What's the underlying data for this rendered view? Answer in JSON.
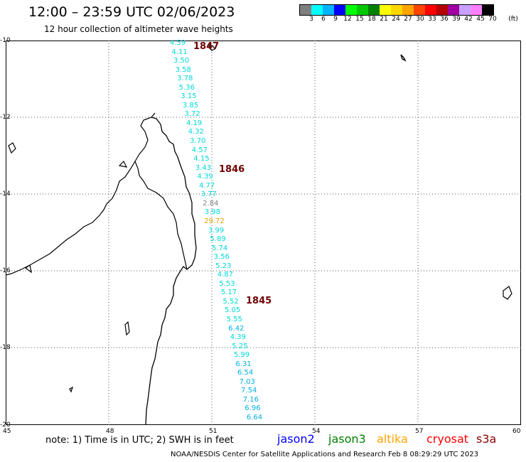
{
  "header": {
    "title": "12:00 – 23:59 UTC 02/06/2023",
    "subtitle": "12 hour collection of altimeter wave heights"
  },
  "scale": {
    "unit": "(ft)",
    "labels": [
      "3",
      "6",
      "9",
      "12",
      "15",
      "18",
      "21",
      "24",
      "27",
      "30",
      "33",
      "36",
      "39",
      "42",
      "45",
      "70"
    ],
    "colors": [
      "#7f7f7f",
      "#00ffff",
      "#00b4ff",
      "#0000ff",
      "#00ff00",
      "#00c800",
      "#008000",
      "#ffff00",
      "#ffd700",
      "#ffa500",
      "#ff4500",
      "#ff0000",
      "#b40000",
      "#a000a0",
      "#c8a0ff",
      "#ff80ff",
      "#000000"
    ]
  },
  "axes": {
    "lat_labels": [
      "-10",
      "-12",
      "-14",
      "-16",
      "-18",
      "-20"
    ],
    "lon_labels": [
      "45",
      "48",
      "51",
      "54",
      "57",
      "60"
    ]
  },
  "track": {
    "values": [
      {
        "v": "4.59",
        "c": "#00d8d8"
      },
      {
        "v": "4.11",
        "c": "#00d8d8"
      },
      {
        "v": "3.50",
        "c": "#00d8d8"
      },
      {
        "v": "3.58",
        "c": "#00d8d8"
      },
      {
        "v": "3.78",
        "c": "#00d8d8"
      },
      {
        "v": "5.36",
        "c": "#00d8d8"
      },
      {
        "v": "3.15",
        "c": "#00d8d8"
      },
      {
        "v": "3.85",
        "c": "#00d8d8"
      },
      {
        "v": "3.72",
        "c": "#00d8d8"
      },
      {
        "v": "4.19",
        "c": "#00d8d8"
      },
      {
        "v": "4.32",
        "c": "#00d8d8"
      },
      {
        "v": "3.70",
        "c": "#00d8d8"
      },
      {
        "v": "4.57",
        "c": "#00d8d8"
      },
      {
        "v": "4.15",
        "c": "#00d8d8"
      },
      {
        "v": "3.43",
        "c": "#00d8d8"
      },
      {
        "v": "4.39",
        "c": "#00d8d8"
      },
      {
        "v": "4.77",
        "c": "#00d8d8"
      },
      {
        "v": "3.77",
        "c": "#00d8d8"
      },
      {
        "v": "2.84",
        "c": "#808080"
      },
      {
        "v": "3.98",
        "c": "#00d8d8"
      },
      {
        "v": "29.72",
        "c": "#e0a000"
      },
      {
        "v": "3.99",
        "c": "#00d8d8"
      },
      {
        "v": "5.89",
        "c": "#00d8d8"
      },
      {
        "v": "5.74",
        "c": "#00d8d8"
      },
      {
        "v": "3.56",
        "c": "#00d8d8"
      },
      {
        "v": "5.23",
        "c": "#00d8d8"
      },
      {
        "v": "4.87",
        "c": "#00d8d8"
      },
      {
        "v": "5.53",
        "c": "#00d8d8"
      },
      {
        "v": "5.17",
        "c": "#00d8d8"
      },
      {
        "v": "5.52",
        "c": "#00d8d8"
      },
      {
        "v": "5.05",
        "c": "#00d8d8"
      },
      {
        "v": "5.55",
        "c": "#00d8d8"
      },
      {
        "v": "6.42",
        "c": "#00b0e0"
      },
      {
        "v": "4.39",
        "c": "#00d8d8"
      },
      {
        "v": "5.25",
        "c": "#00d8d8"
      },
      {
        "v": "5.99",
        "c": "#00d8d8"
      },
      {
        "v": "6.31",
        "c": "#00b0e0"
      },
      {
        "v": "6.54",
        "c": "#00b0e0"
      },
      {
        "v": "7.03",
        "c": "#00b0e0"
      },
      {
        "v": "7.54",
        "c": "#00b0e0"
      },
      {
        "v": "7.16",
        "c": "#00b0e0"
      },
      {
        "v": "6.96",
        "c": "#00b0e0"
      },
      {
        "v": "6.64",
        "c": "#00b0e0"
      }
    ],
    "timestamps": [
      "1847",
      "1846",
      "1845"
    ]
  },
  "footer": {
    "note": "note: 1) Time is in UTC; 2) SWH is in feet",
    "satellites": [
      {
        "name": "jason2",
        "color": "#0000ff"
      },
      {
        "name": "jason3",
        "color": "#008000"
      },
      {
        "name": "altika",
        "color": "#ffa500"
      },
      {
        "name": "cryosat",
        "color": "#ff0000"
      },
      {
        "name": "s3a",
        "color": "#8b0000"
      }
    ],
    "credit": "NOAA/NESDIS Center for Satellite Applications and Research   Feb  8 08:29:29 UTC 2023"
  }
}
